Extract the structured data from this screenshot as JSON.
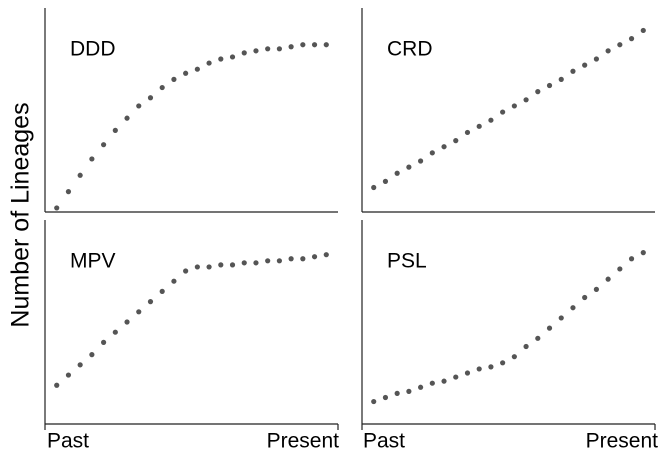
{
  "ylabel": "Number of Lineages",
  "x_labels": [
    "Past",
    "Present"
  ],
  "chart_data": [
    {
      "type": "line",
      "title": "DDD",
      "color": "#555555",
      "xlim": [
        0,
        100
      ],
      "ylim": [
        0,
        100
      ],
      "x": [
        4,
        8,
        12,
        16,
        20,
        24,
        28,
        32,
        36,
        40,
        44,
        48,
        52,
        56,
        60,
        64,
        68,
        72,
        76,
        80,
        84,
        88,
        92,
        96
      ],
      "values": [
        2,
        10,
        18,
        26,
        33,
        40,
        46,
        52,
        56,
        61,
        65,
        68,
        70,
        73,
        75,
        76,
        78,
        79,
        80,
        80,
        81,
        82,
        82,
        82
      ]
    },
    {
      "type": "line",
      "title": "CRD",
      "color": "#555555",
      "xlim": [
        0,
        100
      ],
      "ylim": [
        0,
        100
      ],
      "x": [
        4,
        8,
        12,
        16,
        20,
        24,
        28,
        32,
        36,
        40,
        44,
        48,
        52,
        56,
        60,
        64,
        68,
        72,
        76,
        80,
        84,
        88,
        92,
        96
      ],
      "values": [
        12,
        15,
        19,
        22,
        25,
        29,
        32,
        35,
        39,
        42,
        45,
        49,
        52,
        55,
        59,
        62,
        65,
        69,
        72,
        75,
        79,
        82,
        85,
        89
      ]
    },
    {
      "type": "line",
      "title": "MPV",
      "color": "#555555",
      "xlim": [
        0,
        100
      ],
      "ylim": [
        0,
        100
      ],
      "x": [
        4,
        8,
        12,
        16,
        20,
        24,
        28,
        32,
        36,
        40,
        44,
        48,
        52,
        56,
        60,
        64,
        68,
        72,
        76,
        80,
        84,
        88,
        92,
        96
      ],
      "values": [
        19,
        24,
        29,
        34,
        40,
        45,
        50,
        55,
        60,
        65,
        70,
        75,
        77,
        77,
        78,
        78,
        79,
        79,
        80,
        80,
        81,
        81,
        82,
        83
      ]
    },
    {
      "type": "line",
      "title": "PSL",
      "color": "#555555",
      "xlim": [
        0,
        100
      ],
      "ylim": [
        0,
        100
      ],
      "x": [
        4,
        8,
        12,
        16,
        20,
        24,
        28,
        32,
        36,
        40,
        44,
        48,
        52,
        56,
        60,
        64,
        68,
        72,
        76,
        80,
        84,
        88,
        92,
        96
      ],
      "values": [
        11,
        13,
        15,
        16,
        18,
        20,
        21,
        23,
        25,
        27,
        28,
        30,
        33,
        38,
        42,
        47,
        52,
        57,
        62,
        66,
        71,
        76,
        81,
        84
      ]
    }
  ]
}
